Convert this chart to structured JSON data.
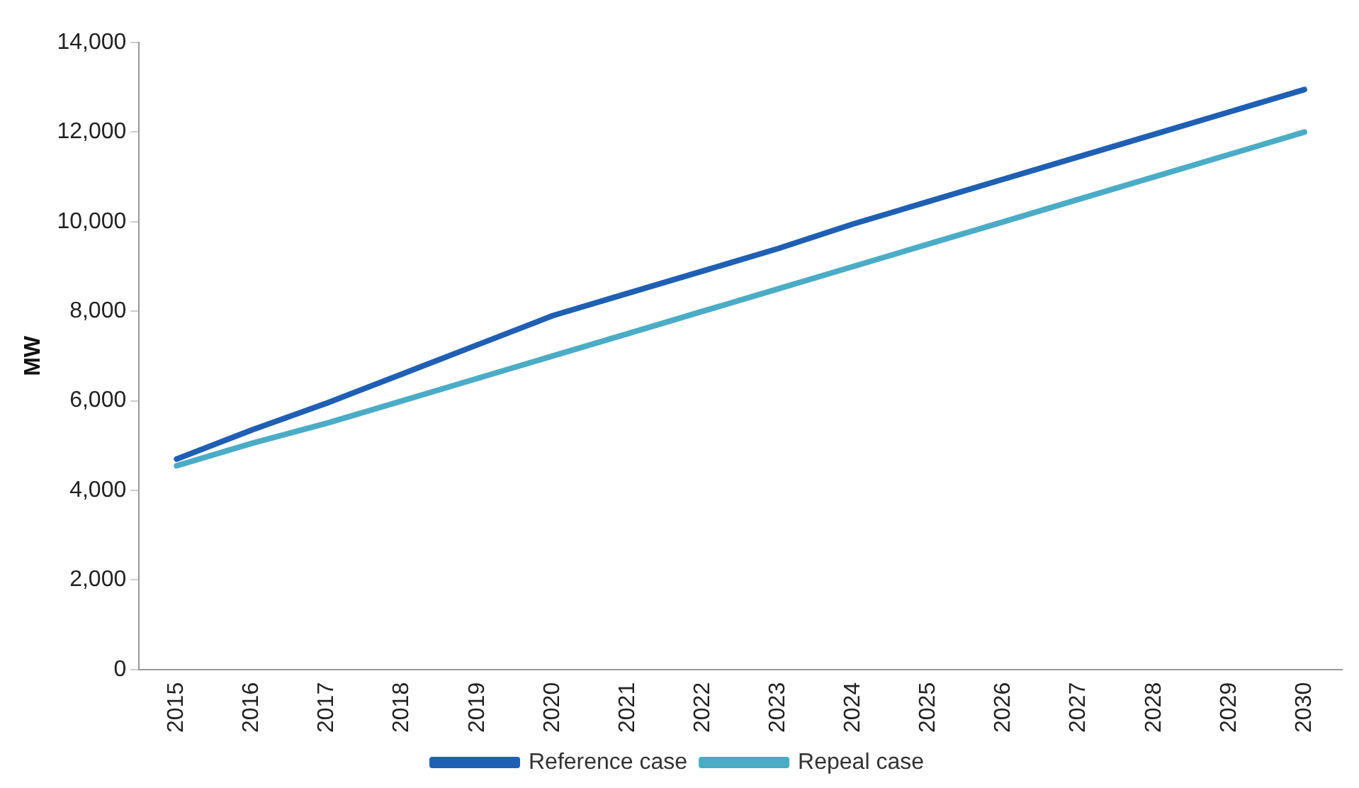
{
  "chart_data": {
    "type": "line",
    "ylabel": "MW",
    "categories": [
      "2015",
      "2016",
      "2017",
      "2018",
      "2019",
      "2020",
      "2021",
      "2022",
      "2023",
      "2024",
      "2025",
      "2026",
      "2027",
      "2028",
      "2029",
      "2030"
    ],
    "series": [
      {
        "name": "Reference case",
        "color": "#1f5fb4",
        "values": [
          4700,
          5350,
          5950,
          6600,
          7250,
          7900,
          8400,
          8900,
          9400,
          9950,
          10450,
          10950,
          11450,
          11950,
          12450,
          12950
        ]
      },
      {
        "name": "Repeal case",
        "color": "#4bacc6",
        "values": [
          4550,
          5050,
          5500,
          6000,
          6500,
          7000,
          7500,
          8000,
          8500,
          9000,
          9500,
          10000,
          10500,
          11000,
          11500,
          12000
        ]
      }
    ],
    "ylim": [
      0,
      14000
    ],
    "yticks": [
      0,
      {
        "value": 2000,
        "label": "2,000"
      },
      {
        "value": 4000,
        "label": "4,000"
      },
      {
        "value": 6000,
        "label": "6,000"
      },
      {
        "value": 8000,
        "label": "8,000"
      },
      {
        "value": 10000,
        "label": "10,000"
      },
      {
        "value": 12000,
        "label": "12,000"
      },
      {
        "value": 14000,
        "label": "14,000"
      }
    ],
    "grid": false,
    "legend": "bottom",
    "marker": "none",
    "line_style": "solid"
  }
}
